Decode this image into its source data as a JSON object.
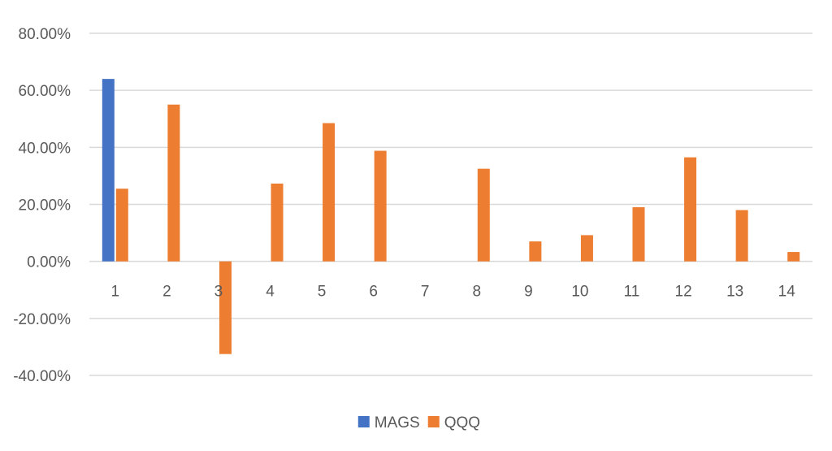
{
  "chart_data": {
    "type": "bar",
    "categories": [
      "1",
      "2",
      "3",
      "4",
      "5",
      "6",
      "7",
      "8",
      "9",
      "10",
      "11",
      "12",
      "13",
      "14"
    ],
    "series": [
      {
        "name": "MAGS",
        "color": "#4472C4",
        "values": [
          0.64,
          null,
          null,
          null,
          null,
          null,
          null,
          null,
          null,
          null,
          null,
          null,
          null,
          null
        ]
      },
      {
        "name": "QQQ",
        "color": "#ED7D31",
        "values": [
          0.255,
          0.55,
          -0.325,
          0.273,
          0.485,
          0.388,
          null,
          0.325,
          0.07,
          0.092,
          0.19,
          0.365,
          0.18,
          0.033
        ]
      }
    ],
    "ylim": [
      -0.4,
      0.8
    ],
    "yticks": [
      0.8,
      0.6,
      0.4,
      0.2,
      0.0,
      -0.2,
      -0.4
    ],
    "ytick_labels": [
      "80.00%",
      "60.00%",
      "40.00%",
      "20.00%",
      "0.00%",
      "-20.00%",
      "-40.00%"
    ],
    "grid": true,
    "legend_position": "bottom",
    "gridline_color": "#d9d9d9",
    "text_color": "#595959"
  }
}
